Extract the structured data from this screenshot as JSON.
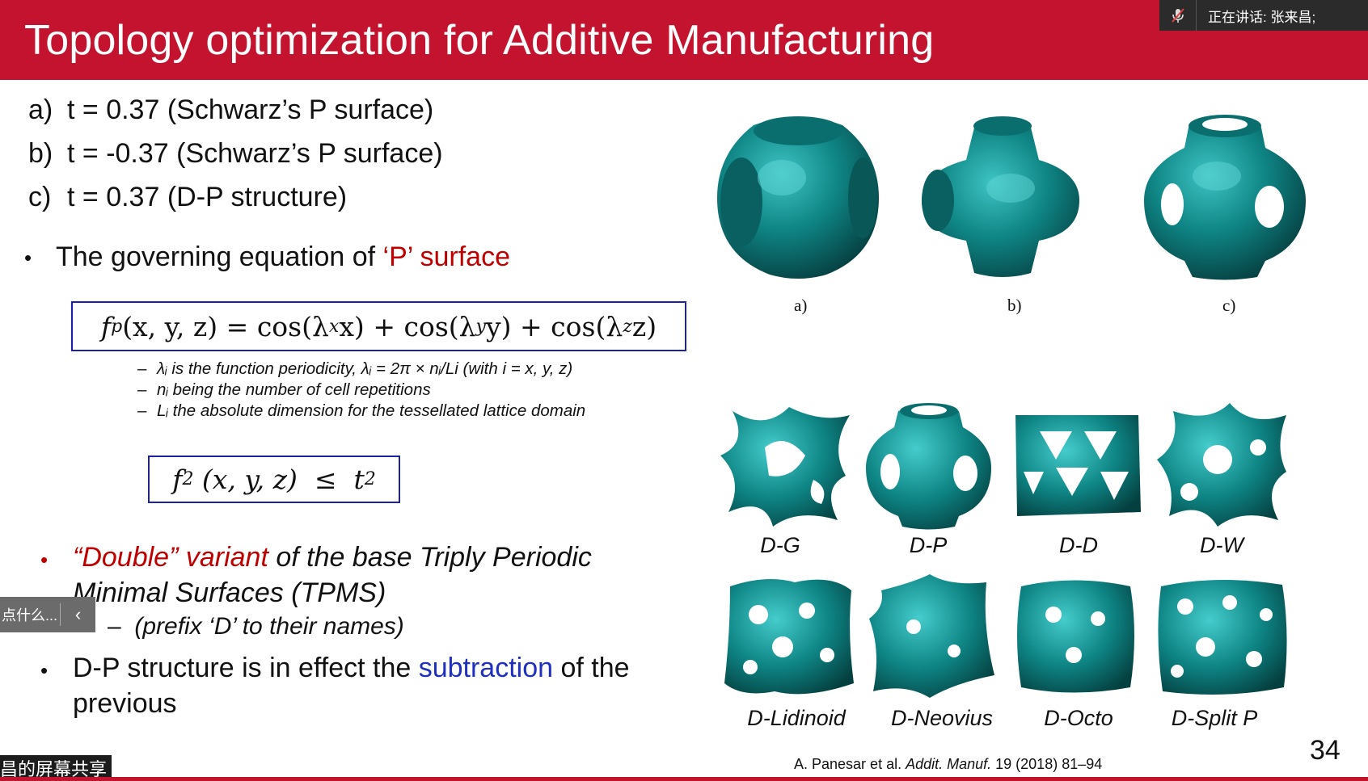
{
  "title": "Topology optimization for Additive Manufacturing",
  "speaker_indicator": {
    "label": "正在讲话: 张来昌;",
    "icon": "muted-mic-icon"
  },
  "cases": [
    {
      "tag": "a)",
      "text": "t = 0.37 (Schwarz’s P surface)"
    },
    {
      "tag": "b)",
      "text": "t = -0.37 (Schwarz’s P surface)"
    },
    {
      "tag": "c)",
      "text": "t = 0.37 (D-P structure)"
    }
  ],
  "bullet1": {
    "dot": "•",
    "text": "The governing equation of ",
    "highlight": "‘P’ surface"
  },
  "equation1": {
    "lhs": "f",
    "lhs_sub": "p",
    "args": "(x, y, z)",
    "equals": "=",
    "t1": "cos(λ",
    "t1s": "x",
    "t1e": "x)",
    "plus": "+",
    "t2": "cos(λ",
    "t2s": "y",
    "t2e": "y)",
    "t3": "cos(λ",
    "t3s": "z",
    "t3e": "z)"
  },
  "definitions": [
    {
      "dash": "–",
      "text": "λᵢ is the function periodicity, λᵢ = 2π × nᵢ/Li (with i = x, y, z)"
    },
    {
      "dash": "–",
      "text": "nᵢ being the number of cell repetitions"
    },
    {
      "dash": "–",
      "text": "Lᵢ the absolute dimension for the tessellated lattice domain"
    }
  ],
  "equation2": {
    "lhs": "f",
    "pow": "2",
    "args": " (x, y, z)  ≤  t",
    "pow2": "2"
  },
  "bullet2": {
    "dot": "•",
    "highlight": "“Double” variant",
    "line1_rest": " of the base Triply Periodic",
    "line2": "Minimal Surfaces (TPMS)",
    "sub_dash": "–",
    "sub": "(prefix ‘D’ to their names)"
  },
  "bullet3": {
    "dot": "•",
    "pre": "D-P structure is in effect the ",
    "highlight": "subtraction",
    "post": " of the",
    "line2": "previous"
  },
  "overlay_button": {
    "text": "点什么...",
    "chevron": "‹"
  },
  "screen_share_tag": "昌的屏幕共享",
  "figure_top_labels": [
    "a)",
    "b)",
    "c)"
  ],
  "figure_bottom_labels": [
    "D-G",
    "D-P",
    "D-D",
    "D-W",
    "D-Lidinoid",
    "D-Neovius",
    "D-Octo",
    "D-Split P"
  ],
  "citation": {
    "authors": "A. Panesar et al. ",
    "journal": "Addit. Manuf.",
    "rest": " 19 (2018) 81–94"
  },
  "page_number": "34",
  "colors": {
    "title_bar": "#c3132f",
    "highlight_red": "#c00000",
    "highlight_blue": "#1f2fbf",
    "box_border": "#1b22a8",
    "lattice": "#0d8c8c"
  }
}
